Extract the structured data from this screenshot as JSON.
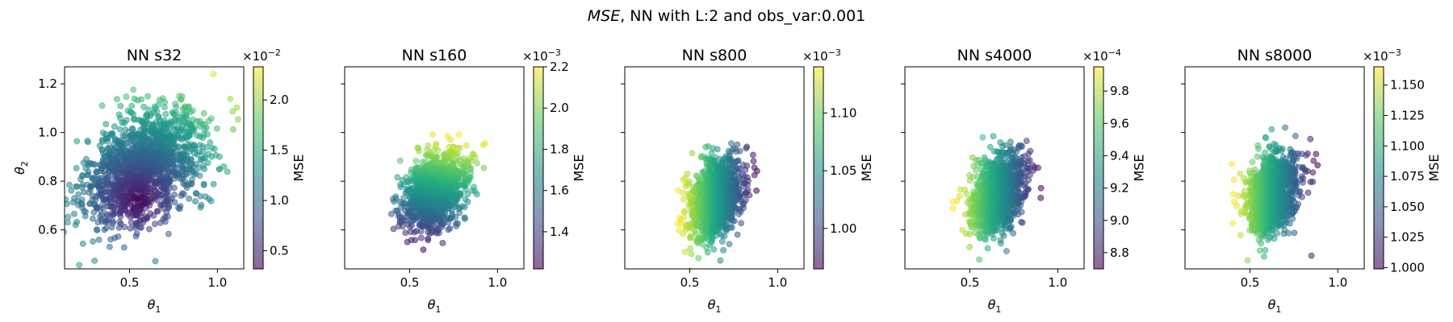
{
  "figure": {
    "title_italic": "MSE",
    "title_rest": ", NN with L:2 and obs_var:0.001"
  },
  "chart_data": [
    {
      "type": "scatter",
      "title": "NN s32",
      "xlabel": "θ1",
      "ylabel": "θ2",
      "xlim": [
        0.13,
        1.15
      ],
      "ylim": [
        0.44,
        1.27
      ],
      "xticks": [
        0.5,
        1.0
      ],
      "xtick_labels": [
        "0.5",
        "1.0"
      ],
      "yticks": [
        0.6,
        0.8,
        1.0,
        1.2
      ],
      "ytick_labels": [
        "0.6",
        "0.8",
        "1.0",
        "1.2"
      ],
      "show_ytick_labels": true,
      "cloud": {
        "mean_x": 0.58,
        "mean_y": 0.86,
        "sd_x": 0.17,
        "sd_y": 0.12,
        "corr": 0.35,
        "n": 1400,
        "seed": 11
      },
      "color_rule": {
        "kind": "dist",
        "center_x": 0.55,
        "center_y": 0.72
      },
      "colorbar": {
        "label": "MSE",
        "range": [
          0.32,
          2.33
        ],
        "ticks": [
          0.5,
          1.0,
          1.5,
          2.0
        ],
        "tick_labels": [
          "0.5",
          "1.0",
          "1.5",
          "2.0"
        ],
        "exponent_base": "×10",
        "exponent_power": "−2"
      }
    },
    {
      "type": "scatter",
      "title": "NN s160",
      "xlabel": "θ1",
      "xlim": [
        0.13,
        1.15
      ],
      "ylim": [
        0.44,
        1.27
      ],
      "xticks": [
        0.5,
        1.0
      ],
      "xtick_labels": [
        "0.5",
        "1.0"
      ],
      "yticks": [
        0.6,
        0.8,
        1.0,
        1.2
      ],
      "show_ytick_labels": false,
      "cloud": {
        "mean_x": 0.64,
        "mean_y": 0.76,
        "sd_x": 0.085,
        "sd_y": 0.075,
        "corr": 0.35,
        "n": 1100,
        "seed": 23
      },
      "color_rule": {
        "kind": "y"
      },
      "colorbar": {
        "label": "MSE",
        "range": [
          1.22,
          2.2
        ],
        "ticks": [
          1.4,
          1.6,
          1.8,
          2.0,
          2.2
        ],
        "tick_labels": [
          "1.4",
          "1.6",
          "1.8",
          "2.0",
          "2.2"
        ],
        "exponent_base": "×10",
        "exponent_power": "−3"
      }
    },
    {
      "type": "scatter",
      "title": "NN s800",
      "xlabel": "θ1",
      "xlim": [
        0.13,
        1.15
      ],
      "ylim": [
        0.44,
        1.27
      ],
      "xticks": [
        0.5,
        1.0
      ],
      "xtick_labels": [
        "0.5",
        "1.0"
      ],
      "yticks": [
        0.6,
        0.8,
        1.0,
        1.2
      ],
      "show_ytick_labels": false,
      "cloud": {
        "mean_x": 0.65,
        "mean_y": 0.73,
        "sd_x": 0.075,
        "sd_y": 0.08,
        "corr": 0.3,
        "n": 1100,
        "seed": 37
      },
      "color_rule": {
        "kind": "neg_x"
      },
      "colorbar": {
        "label": "MSE",
        "range": [
          0.965,
          1.14
        ],
        "ticks": [
          1.0,
          1.05,
          1.1
        ],
        "tick_labels": [
          "1.00",
          "1.05",
          "1.10"
        ],
        "exponent_base": "×10",
        "exponent_power": "−3"
      }
    },
    {
      "type": "scatter",
      "title": "NN s4000",
      "xlabel": "θ1",
      "xlim": [
        0.13,
        1.15
      ],
      "ylim": [
        0.44,
        1.27
      ],
      "xticks": [
        0.5,
        1.0
      ],
      "xtick_labels": [
        "0.5",
        "1.0"
      ],
      "yticks": [
        0.6,
        0.8,
        1.0,
        1.2
      ],
      "show_ytick_labels": false,
      "cloud": {
        "mean_x": 0.66,
        "mean_y": 0.75,
        "sd_x": 0.075,
        "sd_y": 0.08,
        "corr": 0.3,
        "n": 1100,
        "seed": 53
      },
      "color_rule": {
        "kind": "neg_x"
      },
      "colorbar": {
        "label": "MSE",
        "range": [
          8.7,
          9.95
        ],
        "ticks": [
          8.8,
          9.0,
          9.2,
          9.4,
          9.6,
          9.8
        ],
        "tick_labels": [
          "8.8",
          "9.0",
          "9.2",
          "9.4",
          "9.6",
          "9.8"
        ],
        "exponent_base": "×10",
        "exponent_power": "−4"
      }
    },
    {
      "type": "scatter",
      "title": "NN s8000",
      "xlabel": "θ1",
      "xlim": [
        0.13,
        1.15
      ],
      "ylim": [
        0.44,
        1.27
      ],
      "xticks": [
        0.5,
        1.0
      ],
      "xtick_labels": [
        "0.5",
        "1.0"
      ],
      "yticks": [
        0.6,
        0.8,
        1.0,
        1.2
      ],
      "show_ytick_labels": false,
      "cloud": {
        "mean_x": 0.63,
        "mean_y": 0.75,
        "sd_x": 0.075,
        "sd_y": 0.08,
        "corr": 0.3,
        "n": 1100,
        "seed": 71
      },
      "color_rule": {
        "kind": "neg_x"
      },
      "colorbar": {
        "label": "MSE",
        "range": [
          0.999,
          1.165
        ],
        "ticks": [
          1.0,
          1.025,
          1.05,
          1.075,
          1.1,
          1.125,
          1.15
        ],
        "tick_labels": [
          "1.000",
          "1.025",
          "1.050",
          "1.075",
          "1.100",
          "1.125",
          "1.150"
        ],
        "exponent_base": "×10",
        "exponent_power": "−3"
      }
    }
  ]
}
